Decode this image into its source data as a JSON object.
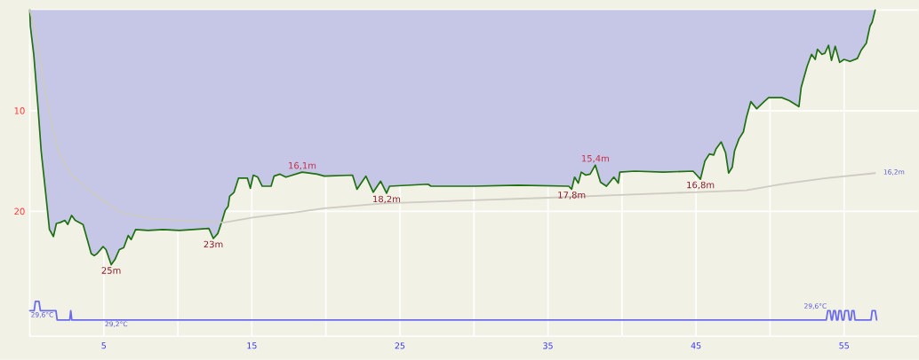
{
  "chart_data": {
    "type": "area",
    "xlim": [
      0,
      60
    ],
    "xticks": [
      5,
      {
        "value": 10,
        "label": null
      },
      15,
      {
        "value": 20,
        "label": null
      },
      25,
      {
        "value": 30,
        "label": null
      },
      35,
      {
        "value": 40,
        "label": null
      },
      45,
      {
        "value": 50,
        "label": null
      },
      55
    ],
    "ylim": [
      32.4,
      0
    ],
    "yticks": [
      {
        "value": 0,
        "label": null
      },
      10,
      20
    ],
    "y2lim": [
      28.5,
      42.55
    ],
    "grid": true,
    "series": [
      {
        "color": "#1e7010",
        "x": [
          0,
          0.04,
          0.27,
          0.57,
          0.77,
          1.07,
          1.33,
          1.6,
          1.8,
          2.07,
          2.37,
          2.57,
          2.83,
          3.07,
          3.6,
          4.15,
          4.35,
          4.55,
          4.95,
          5.15,
          5.5,
          5.75,
          6.05,
          6.35,
          6.65,
          6.85,
          7.15,
          8.0,
          9.0,
          10.1,
          11.0,
          12.1,
          12.4,
          12.7,
          13.0,
          13.2,
          13.4,
          13.5,
          13.8,
          14.1,
          14.7,
          14.9,
          15.1,
          15.4,
          15.7,
          16.3,
          16.5,
          16.9,
          17.3,
          18.4,
          19.4,
          19.9,
          21.8,
          22.1,
          22.7,
          23.2,
          23.7,
          24.1,
          24.3,
          26.9,
          27.1,
          30.0,
          33.0,
          36.4,
          36.6,
          36.8,
          37.05,
          37.25,
          37.55,
          37.85,
          38.2,
          38.55,
          38.95,
          39.45,
          39.75,
          39.85,
          40.85,
          42.8,
          44.8,
          45.3,
          45.6,
          45.9,
          46.2,
          46.35,
          46.7,
          47.0,
          47.2,
          47.45,
          47.6,
          47.9,
          48.2,
          48.4,
          48.7,
          49.1,
          49.6,
          49.9,
          50.8,
          51.3,
          51.95,
          52.1,
          52.5,
          52.8,
          53.05,
          53.2,
          53.5,
          53.7,
          53.95,
          54.15,
          54.4,
          54.7,
          55.0,
          55.4,
          55.9,
          56.15,
          56.5,
          56.75,
          56.9,
          57.1
        ],
        "values": [
          0,
          1.6,
          4.4,
          9.9,
          14.0,
          18.1,
          21.8,
          22.5,
          21.2,
          21.1,
          20.9,
          21.3,
          20.4,
          20.9,
          21.3,
          24.2,
          24.4,
          24.2,
          23.5,
          23.8,
          25.3,
          24.8,
          23.8,
          23.6,
          22.4,
          22.8,
          21.8,
          21.9,
          21.8,
          21.9,
          21.8,
          21.7,
          22.7,
          22.2,
          20.9,
          19.9,
          19.5,
          18.5,
          18.1,
          16.7,
          16.7,
          17.7,
          16.4,
          16.6,
          17.5,
          17.5,
          16.5,
          16.3,
          16.6,
          16.1,
          16.3,
          16.5,
          16.4,
          17.8,
          16.5,
          18.1,
          17.0,
          18.2,
          17.5,
          17.3,
          17.5,
          17.5,
          17.4,
          17.5,
          17.8,
          16.6,
          17.2,
          16.1,
          16.4,
          16.3,
          15.4,
          17.1,
          17.5,
          16.6,
          17.2,
          16.1,
          16.0,
          16.1,
          16.0,
          16.8,
          15.0,
          14.3,
          14.4,
          13.8,
          13.1,
          14.2,
          16.2,
          15.6,
          14.0,
          12.8,
          12.1,
          10.7,
          9.1,
          9.8,
          9.1,
          8.7,
          8.7,
          9.0,
          9.6,
          7.7,
          5.6,
          4.4,
          4.9,
          3.9,
          4.4,
          4.3,
          3.5,
          5.0,
          3.6,
          5.2,
          4.9,
          5.1,
          4.8,
          4.0,
          3.3,
          1.6,
          1.2,
          0
        ],
        "value_labels": [
          null,
          null,
          null,
          null,
          null,
          null,
          null,
          null,
          null,
          null,
          null,
          null,
          null,
          null,
          null,
          null,
          null,
          null,
          null,
          null,
          "25m",
          null,
          null,
          null,
          null,
          null,
          null,
          null,
          null,
          null,
          null,
          null,
          "23m",
          null,
          null,
          null,
          null,
          null,
          null,
          null,
          null,
          null,
          null,
          null,
          null,
          null,
          null,
          null,
          null,
          "16,1m",
          null,
          null,
          null,
          null,
          null,
          null,
          null,
          "18,2m",
          null,
          null,
          null,
          null,
          null,
          null,
          "17,8m",
          null,
          null,
          null,
          null,
          null,
          "15,4m",
          null,
          null,
          null,
          null,
          null,
          null,
          null,
          null,
          "16,8m",
          null,
          null,
          null,
          null,
          null,
          null,
          null,
          null,
          null,
          null,
          null,
          null,
          null,
          null,
          null,
          null,
          null,
          null,
          null,
          null,
          null,
          null,
          null,
          null,
          null,
          null,
          null,
          null,
          null,
          null,
          null,
          null,
          null,
          null,
          null,
          null,
          null,
          null
        ]
      },
      {
        "type": "line",
        "color": "#cdcbc2",
        "x": [
          0,
          0.38,
          0.97,
          1.47,
          1.97,
          2.77,
          4.16,
          6.15,
          8.15,
          10.14,
          13.13,
          15.13,
          17.9,
          19.9,
          23.9,
          29.9,
          35.9,
          39.45,
          44.8,
          48.4,
          50.8,
          53.8,
          57.1
        ],
        "values": [
          0,
          1.9,
          7.5,
          11.3,
          14.2,
          16.3,
          18.1,
          20.1,
          20.7,
          20.9,
          21.1,
          20.6,
          20.1,
          19.7,
          19.2,
          18.9,
          18.6,
          18.4,
          18.1,
          17.9,
          17.3,
          16.7,
          16.2
        ],
        "value_labels": [
          null,
          null,
          null,
          null,
          null,
          null,
          null,
          null,
          null,
          null,
          null,
          null,
          null,
          null,
          null,
          null,
          null,
          null,
          null,
          null,
          null,
          null,
          "16,2m"
        ]
      },
      {
        "type": "line",
        "axis": "y2",
        "color": "#6b6bee",
        "x": [
          0,
          0.3,
          0.38,
          0.62,
          0.72,
          1.77,
          1.85,
          2.7,
          2.77,
          2.84,
          5.0,
          53.8,
          53.9,
          54.05,
          54.15,
          54.2,
          54.3,
          54.4,
          54.5,
          54.58,
          54.66,
          54.78,
          54.88,
          54.98,
          55.06,
          55.28,
          55.36,
          55.46,
          55.54,
          55.66,
          55.74,
          56.82,
          56.9,
          57.1,
          57.2
        ],
        "values": [
          29.6,
          29.6,
          30.0,
          30.0,
          29.6,
          29.6,
          29.2,
          29.2,
          29.6,
          29.2,
          29.2,
          29.2,
          29.6,
          29.6,
          29.2,
          29.2,
          29.6,
          29.6,
          29.2,
          29.2,
          29.6,
          29.6,
          29.2,
          29.2,
          29.6,
          29.6,
          29.2,
          29.2,
          29.6,
          29.6,
          29.2,
          29.2,
          29.6,
          29.6,
          29.2
        ],
        "value_labels": [
          "29,6°C",
          null,
          null,
          null,
          null,
          null,
          null,
          null,
          null,
          null,
          "29,2°C",
          null,
          "29,6°C",
          null,
          null,
          null,
          null,
          null,
          null,
          null,
          null,
          null,
          null,
          null,
          null,
          null,
          null,
          null,
          null,
          null,
          null,
          null,
          null,
          null,
          null
        ]
      }
    ]
  }
}
